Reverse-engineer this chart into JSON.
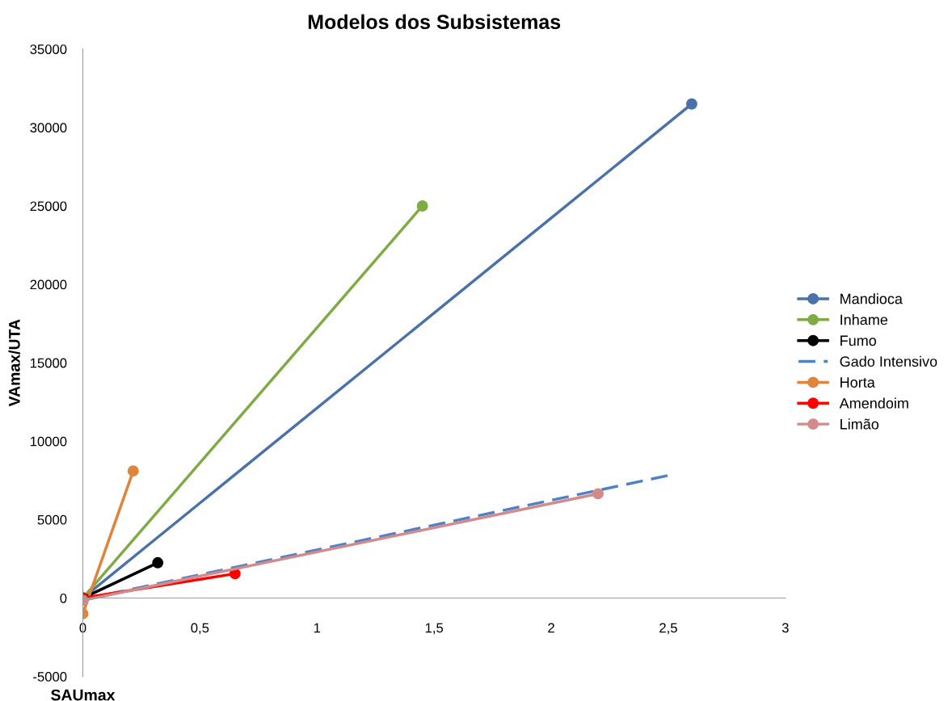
{
  "chart_data": {
    "type": "line",
    "title": "Modelos dos Subsistemas",
    "xlabel": "SAUmax",
    "ylabel": "VAmax/UTA",
    "xlim": [
      0,
      3
    ],
    "ylim": [
      -5000,
      35000
    ],
    "xticks": [
      {
        "value": 0,
        "label": "0"
      },
      {
        "value": 0.5,
        "label": "0,5"
      },
      {
        "value": 1,
        "label": "1"
      },
      {
        "value": 1.5,
        "label": "1,5"
      },
      {
        "value": 2,
        "label": "2"
      },
      {
        "value": 2.5,
        "label": "2,5"
      },
      {
        "value": 3,
        "label": "3"
      }
    ],
    "yticks": [
      -5000,
      0,
      5000,
      10000,
      15000,
      20000,
      25000,
      30000,
      35000
    ],
    "grid": false,
    "legend": "right",
    "series": [
      {
        "name": "Mandioca",
        "color": "#4a72a8",
        "x": [
          0,
          2.6
        ],
        "values": [
          0,
          31500
        ],
        "marker": "circle",
        "line_style": "solid"
      },
      {
        "name": "Inhame",
        "color": "#7fab45",
        "x": [
          0,
          1.45
        ],
        "values": [
          0,
          25000
        ],
        "marker": "circle",
        "line_style": "solid"
      },
      {
        "name": "Fumo",
        "color": "#000000",
        "x": [
          0,
          0.32
        ],
        "values": [
          0,
          2250
        ],
        "marker": "circle",
        "line_style": "solid"
      },
      {
        "name": "Gado Intensivo",
        "color": "#4f81c7",
        "x": [
          0,
          2.51
        ],
        "values": [
          -100,
          7850
        ],
        "marker": "none",
        "line_style": "dashed"
      },
      {
        "name": "Horta",
        "color": "#e0843d",
        "x": [
          0,
          0.215
        ],
        "values": [
          -1000,
          8100
        ],
        "marker": "circle",
        "line_style": "solid"
      },
      {
        "name": "Amendoim",
        "color": "#ff0000",
        "x": [
          0,
          0.65
        ],
        "values": [
          0,
          1550
        ],
        "marker": "circle",
        "line_style": "solid"
      },
      {
        "name": "Limão",
        "color": "#d48a8a",
        "x": [
          0,
          2.2
        ],
        "values": [
          -150,
          6650
        ],
        "marker": "circle",
        "line_style": "solid"
      }
    ]
  }
}
